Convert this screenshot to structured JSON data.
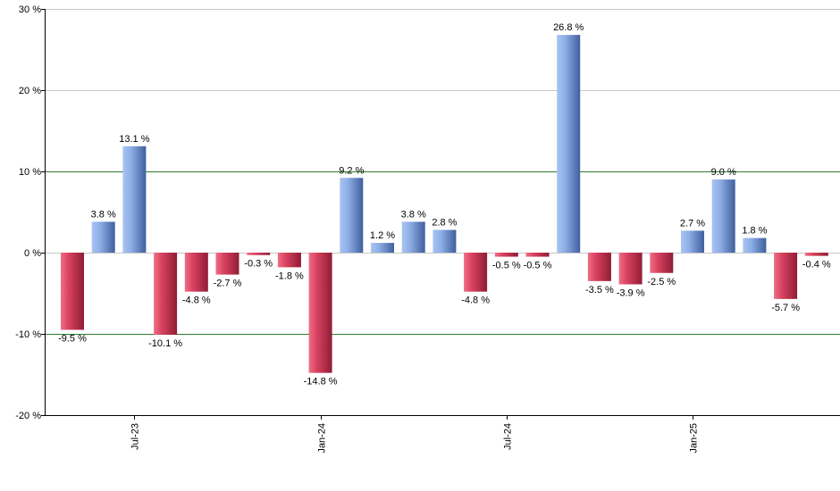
{
  "chart_data": {
    "type": "bar",
    "title": "",
    "xlabel": "",
    "ylabel": "",
    "ylim": [
      -20,
      30
    ],
    "y_ticks": [
      "30 %",
      "20 %",
      "10 %",
      "0 %",
      "-10 %",
      "-20 %"
    ],
    "y_tick_values": [
      30,
      20,
      10,
      0,
      -10,
      -20
    ],
    "reference_lines": [
      10,
      -10
    ],
    "grid": true,
    "legend": "none",
    "x_tick_labels": [
      {
        "label": "Jul-23",
        "at_index": 2
      },
      {
        "label": "Jan-24",
        "at_index": 8
      },
      {
        "label": "Jul-24",
        "at_index": 14
      },
      {
        "label": "Jan-25",
        "at_index": 20
      }
    ],
    "values": [
      -9.5,
      3.8,
      13.1,
      -10.1,
      -4.8,
      -2.7,
      -0.3,
      -1.8,
      -14.8,
      9.2,
      1.2,
      3.8,
      2.8,
      -4.8,
      -0.5,
      -0.5,
      26.8,
      -3.5,
      -3.9,
      -2.5,
      2.7,
      9.0,
      1.8,
      -5.7,
      -0.4
    ],
    "data_labels": [
      "-9.5 %",
      "3.8 %",
      "13.1 %",
      "-10.1 %",
      "-4.8 %",
      "-2.7 %",
      "-0.3 %",
      "-1.8 %",
      "-14.8 %",
      "9.2 %",
      "1.2 %",
      "3.8 %",
      "2.8 %",
      "-4.8 %",
      "-0.5 %",
      "-0.5 %",
      "26.8 %",
      "-3.5 %",
      "-3.9 %",
      "-2.5 %",
      "2.7 %",
      "9.0 %",
      "1.8 %",
      "-5.7 %",
      "-0.4 %"
    ],
    "colors": {
      "positive_light": "#a9c4f2",
      "positive_dark": "#3f5f9e",
      "negative_light": "#ee6f86",
      "negative_dark": "#8f1d35",
      "gridline": "#c8c8c8",
      "reference_line": "#2e7d2e",
      "axis": "#000000"
    }
  }
}
